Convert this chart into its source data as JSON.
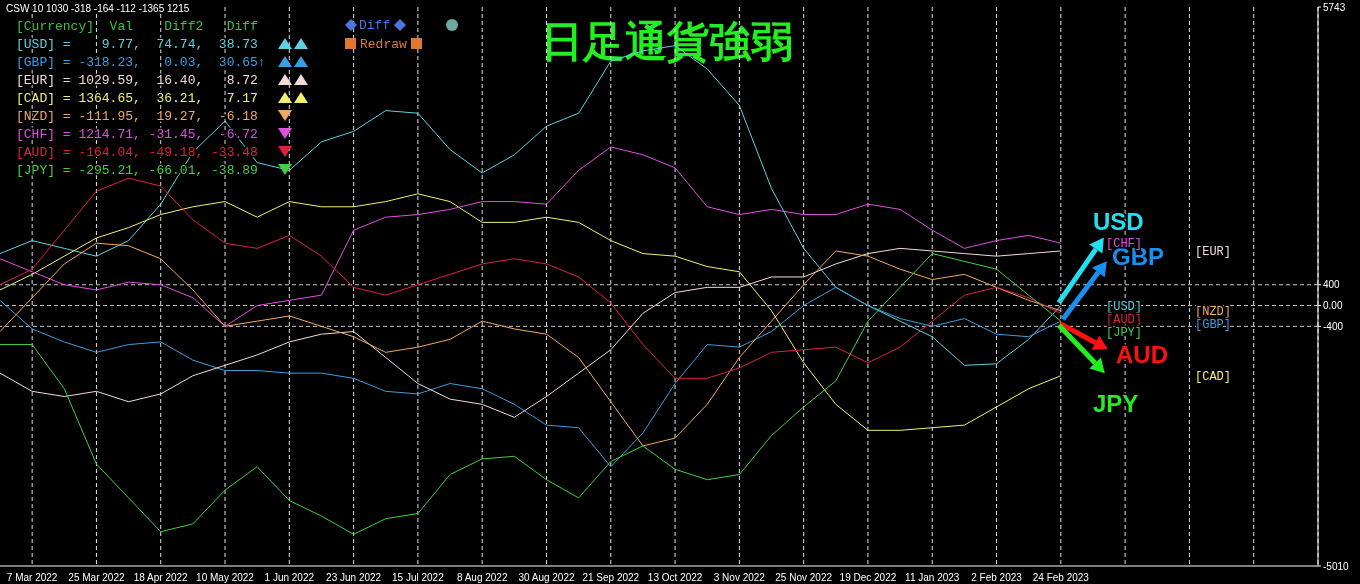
{
  "chart_data": {
    "type": "line",
    "title": "日足通貨強弱",
    "categories": [
      null,
      "7 Mar 2022",
      null,
      "25 Mar 2022",
      null,
      "18 Apr 2022",
      null,
      "10 May 2022",
      null,
      "1 Jun 2022",
      null,
      "23 Jun 2022",
      null,
      "15 Jul 2022",
      null,
      "8 Aug 2022",
      null,
      "30 Aug 2022",
      null,
      "21 Sep 2022",
      null,
      "13 Oct 2022",
      null,
      "3 Nov 2022",
      null,
      "25 Nov 2022",
      null,
      "19 Dec 2022",
      null,
      "11 Jan 2023",
      null,
      "2 Feb 2023",
      null,
      "24 Feb 2023",
      null,
      null,
      null,
      null,
      null,
      null,
      null,
      null
    ],
    "series": [
      {
        "name": "[USD]",
        "color": "#5fd0e0",
        "values": [
          1000,
          1250,
          1100,
          950,
          1250,
          1950,
          2950,
          3550,
          2750,
          2600,
          3150,
          3350,
          3750,
          3700,
          3000,
          2550,
          2900,
          3450,
          3700,
          4700,
          4900,
          5000,
          4550,
          3850,
          2250,
          1100,
          350,
          0,
          -300,
          -600,
          -1150,
          -1120,
          -650,
          0,
          null,
          null,
          null,
          null,
          null,
          null,
          null,
          null
        ]
      },
      {
        "name": "[GBP]",
        "color": "#3a9ee0",
        "values": [
          100,
          -450,
          -700,
          -900,
          -750,
          -700,
          -1050,
          -1250,
          -1250,
          -1300,
          -1300,
          -1400,
          -1650,
          -1700,
          -1500,
          -1600,
          -1900,
          -2300,
          -2350,
          -3100,
          -2450,
          -1500,
          -750,
          -800,
          -500,
          0,
          350,
          0,
          -250,
          -400,
          -250,
          -550,
          -600,
          -300,
          null,
          null,
          null,
          null,
          null,
          null,
          null,
          null
        ]
      },
      {
        "name": "[EUR]",
        "color": "#f2dada",
        "values": [
          -1300,
          -1650,
          -1750,
          -1650,
          -1850,
          -1700,
          -1350,
          -1150,
          -950,
          -700,
          -550,
          -500,
          -1000,
          -1500,
          -1800,
          -1900,
          -2150,
          -1750,
          -1300,
          -850,
          -150,
          250,
          350,
          350,
          550,
          550,
          800,
          1000,
          1100,
          1050,
          1000,
          950,
          1000,
          1050,
          null,
          null,
          null,
          null,
          null,
          null,
          null,
          null
        ]
      },
      {
        "name": "[CAD]",
        "color": "#f0f070",
        "values": [
          300,
          600,
          950,
          1300,
          1500,
          1750,
          1900,
          2000,
          1700,
          2000,
          1900,
          1900,
          2000,
          2150,
          2000,
          1600,
          1600,
          1700,
          1600,
          1250,
          1000,
          950,
          750,
          650,
          -100,
          -1100,
          -1900,
          -2400,
          -2400,
          -2350,
          -2300,
          -1950,
          -1600,
          -1350,
          null,
          null,
          null,
          null,
          null,
          null,
          null,
          null
        ]
      },
      {
        "name": "[NZD]",
        "color": "#f0aa60",
        "values": [
          -500,
          150,
          800,
          1200,
          1150,
          900,
          300,
          -400,
          -300,
          -200,
          -400,
          -600,
          -900,
          -800,
          -650,
          -300,
          -450,
          -550,
          -1000,
          -1850,
          -2700,
          -2550,
          -1900,
          -1000,
          -300,
          400,
          1050,
          950,
          700,
          500,
          600,
          350,
          100,
          -100,
          null,
          null,
          null,
          null,
          null,
          null,
          null,
          null
        ]
      },
      {
        "name": "[CHF]",
        "color": "#e050e0",
        "values": [
          900,
          650,
          400,
          300,
          450,
          400,
          150,
          -400,
          0,
          100,
          200,
          1450,
          1700,
          1750,
          1850,
          2000,
          2000,
          1950,
          2600,
          3050,
          2900,
          2650,
          1900,
          1750,
          1850,
          1750,
          1750,
          1950,
          1850,
          1450,
          1100,
          1250,
          1350,
          1200,
          null,
          null,
          null,
          null,
          null,
          null,
          null,
          null
        ]
      },
      {
        "name": "[AUD]",
        "color": "#e02040",
        "values": [
          400,
          700,
          1450,
          2200,
          2450,
          2300,
          1650,
          1200,
          1100,
          1350,
          950,
          350,
          200,
          400,
          600,
          800,
          900,
          800,
          550,
          50,
          -750,
          -1400,
          -1400,
          -1200,
          -900,
          -850,
          -800,
          -1100,
          -800,
          -300,
          200,
          350,
          150,
          -150,
          null,
          null,
          null,
          null,
          null,
          null,
          null,
          null
        ]
      },
      {
        "name": "[JPY]",
        "color": "#40d040",
        "values": [
          -750,
          -750,
          -1600,
          -3050,
          -3700,
          -4350,
          -4200,
          -3550,
          -3100,
          -3750,
          -4050,
          -4400,
          -4100,
          -4000,
          -3250,
          -2950,
          -2900,
          -3350,
          -3700,
          -3000,
          -2700,
          -3150,
          -3350,
          -3250,
          -2500,
          -1950,
          -1450,
          -300,
          350,
          1000,
          850,
          700,
          200,
          -300,
          null,
          null,
          null,
          null,
          null,
          null,
          null,
          null
        ]
      }
    ],
    "ylim": [
      -5010,
      5743
    ],
    "yticks": [
      -5010,
      -400,
      {
        "value": 0,
        "label": "0.00"
      },
      400,
      5743
    ],
    "grid": "x",
    "ref_lines": [
      {
        "axis": "y",
        "value": 400,
        "color": "#c8c8c8",
        "line_style": "dashed"
      },
      {
        "axis": "y",
        "value": 0,
        "color": "#c8c8c8",
        "line_style": "dashed"
      },
      {
        "axis": "y",
        "value": -400,
        "color": "#c8c8c8",
        "line_style": "dashed"
      }
    ],
    "annotations": [
      "CSW 10 1030 -318 -164 -112 -1365 1215",
      "[Currency]  Val    Diff2   Diff",
      "[USD] =    9.77,  74.74,  38.73",
      "[GBP] = -318.23,   0.03,  30.65↑",
      "[EUR] = 1029.59,  16.40,   8.72",
      "[CAD] = 1364.65,  36.21,   7.17",
      "[NZD] = -111.95,  19.27,  -6.18",
      "[CHF] = 1214.71, -31.45,  -6.72",
      "[AUD] = -164.04, -49.18, -33.48",
      "[JPY] = -295.21, -66.01, -38.89",
      "Diff",
      "Redraw",
      {
        "text": "USD",
        "x": "24 Feb 2023",
        "y": 0
      },
      {
        "text": "GBP",
        "x": "24 Feb 2023",
        "y": -300
      },
      {
        "text": "AUD",
        "x": "24 Feb 2023",
        "y": -150
      },
      {
        "text": "JPY",
        "x": "24 Feb 2023",
        "y": -300
      }
    ]
  }
}
